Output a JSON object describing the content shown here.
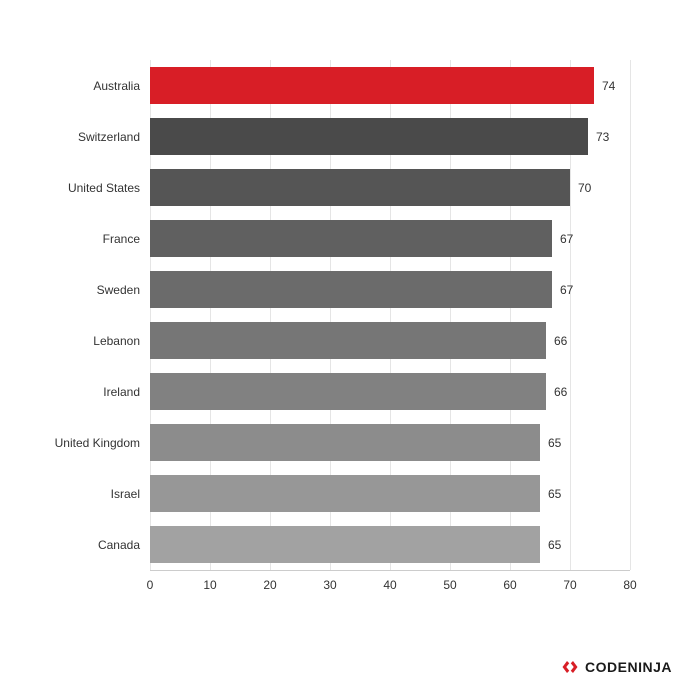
{
  "chart": {
    "type": "bar",
    "orientation": "horizontal",
    "xlim": [
      0,
      80
    ],
    "xtick_step": 10,
    "xticks": [
      0,
      10,
      20,
      30,
      40,
      50,
      60,
      70,
      80
    ],
    "grid_color": "#e5e5e5",
    "axis_line_color": "#cccccc",
    "background_color": "#ffffff",
    "label_fontsize": 12,
    "label_color": "#333333",
    "value_fontsize": 12,
    "value_color": "#333333",
    "bar_height_ratio": 0.72,
    "categories": [
      "Australia",
      "Switzerland",
      "United States",
      "France",
      "Sweden",
      "Lebanon",
      "Ireland",
      "United Kingdom",
      "Israel",
      "Canada"
    ],
    "values": [
      74,
      73,
      70,
      67,
      67,
      66,
      66,
      65,
      65,
      65
    ],
    "bar_colors": [
      "#d81e26",
      "#4a4a4a",
      "#555555",
      "#606060",
      "#6b6b6b",
      "#767676",
      "#818181",
      "#8c8c8c",
      "#979797",
      "#a2a2a2"
    ]
  },
  "brand": {
    "name": "CODENINJA",
    "icon_color": "#d81e26",
    "text_color": "#1a1a1a"
  }
}
